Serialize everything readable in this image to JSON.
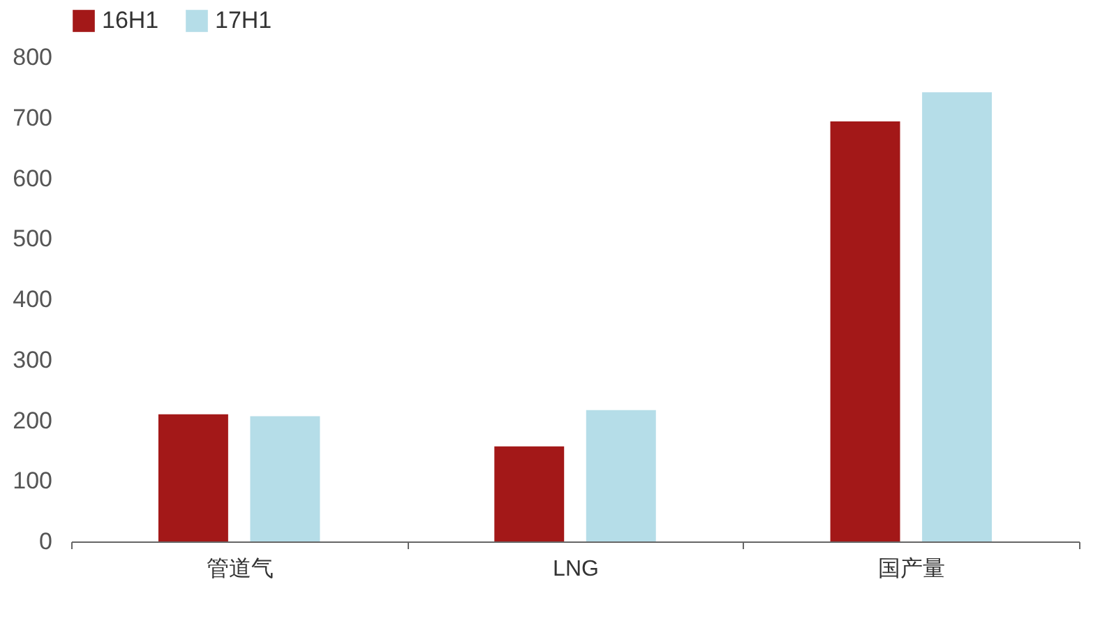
{
  "chart_data": {
    "type": "bar",
    "categories": [
      "管道气",
      "LNG",
      "国产量"
    ],
    "series": [
      {
        "name": "16H1",
        "color": "#a31818",
        "values": [
          210,
          157,
          694
        ]
      },
      {
        "name": "17H1",
        "color": "#b5dde8",
        "values": [
          207,
          217,
          742
        ]
      }
    ],
    "ylim": [
      0,
      800
    ],
    "yticks": [
      0,
      100,
      200,
      300,
      400,
      500,
      600,
      700,
      800
    ],
    "grid": false,
    "legend": "top"
  }
}
